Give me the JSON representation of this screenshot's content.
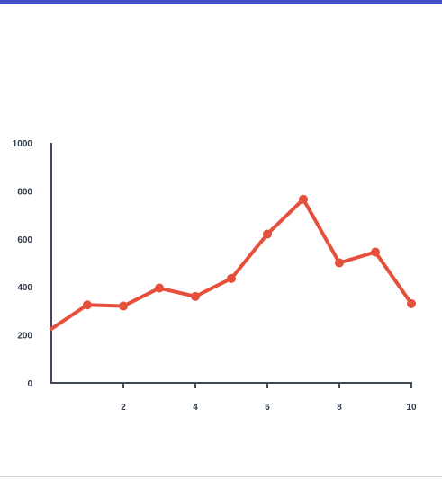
{
  "colors": {
    "top_bar": "#4550c8",
    "axis": "#3f4a5a",
    "series": "#e5503d",
    "tick_text": "#2f3b4c",
    "bottom_rule": "#cfd3da"
  },
  "chart_data": {
    "type": "line",
    "title": "",
    "xlabel": "",
    "ylabel": "",
    "xlim": [
      0,
      10
    ],
    "ylim": [
      0,
      1000
    ],
    "x_ticks": [
      "2",
      "4",
      "6",
      "8",
      "10"
    ],
    "y_ticks": [
      "0",
      "200",
      "400",
      "600",
      "800",
      "1000"
    ],
    "grid": false,
    "series": [
      {
        "x": [
          0,
          1,
          2,
          3,
          4,
          5,
          6,
          7,
          8,
          9,
          10
        ],
        "y": [
          225,
          325,
          320,
          395,
          360,
          435,
          620,
          765,
          500,
          545,
          330
        ]
      }
    ]
  }
}
